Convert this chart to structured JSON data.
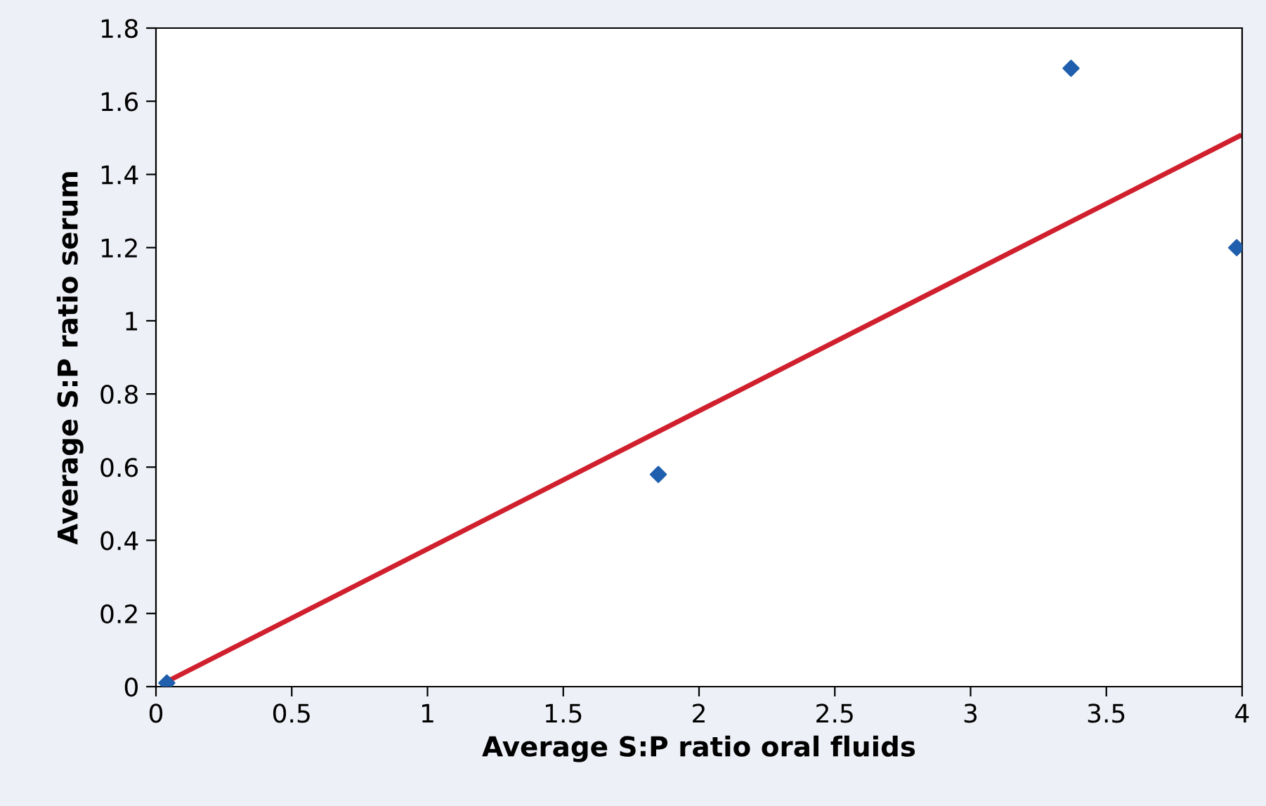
{
  "chart_data": {
    "type": "scatter",
    "xlabel": "Average S:P ratio oral fluids",
    "ylabel": "Average S:P ratio serum",
    "xlim": [
      0,
      4
    ],
    "ylim": [
      0,
      1.8
    ],
    "xticks": [
      0,
      0.5,
      1,
      1.5,
      2,
      2.5,
      3,
      3.5,
      4
    ],
    "yticks": [
      0,
      0.2,
      0.4,
      0.6,
      0.8,
      1,
      1.2,
      1.4,
      1.6,
      1.8
    ],
    "grid": false,
    "marker": "diamond",
    "series": [
      {
        "color": "#1f5fad",
        "x": [
          0.04,
          1.85,
          3.37,
          3.98
        ],
        "values": [
          0.01,
          0.58,
          1.69,
          1.2
        ]
      },
      {
        "type": "line",
        "color": "#d0202e",
        "x": [
          0.03,
          3.99
        ],
        "values": [
          0.01,
          1.505
        ],
        "marker": "none",
        "line_style": "solid"
      }
    ]
  }
}
